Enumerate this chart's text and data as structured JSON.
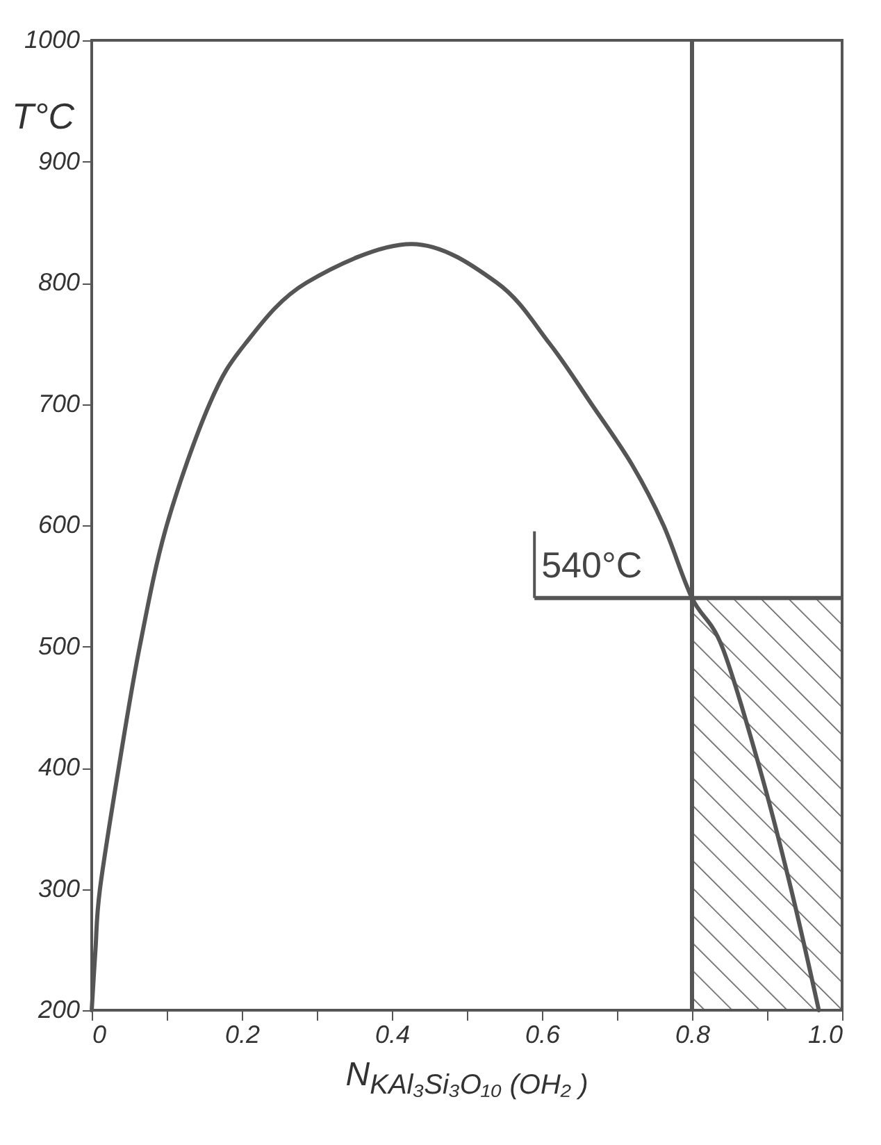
{
  "chart_data": {
    "type": "line",
    "xlabel": "N$_{KAl₃Si₃O₁₀ (OH₂ )}$",
    "ylabel": "T°C",
    "x": [
      0,
      0.005,
      0.011,
      0.036,
      0.064,
      0.1,
      0.157,
      0.205,
      0.286,
      0.426,
      0.54,
      0.61,
      0.666,
      0.72,
      0.762,
      0.8,
      0.84,
      0.89,
      0.932,
      0.969
    ],
    "series": [
      {
        "color": "#555555",
        "values": [
          200,
          250,
          300,
          400,
          500,
          600,
          700,
          750,
          800,
          832,
          800,
          750,
          700,
          650,
          600,
          540,
          500,
          400,
          300,
          200
        ]
      }
    ],
    "xlim": [
      0,
      1
    ],
    "ylim": [
      200,
      1000
    ],
    "xticks": [
      0,
      {
        "value": 0.1,
        "label": null
      },
      0.2,
      {
        "value": 0.3,
        "label": null
      },
      0.4,
      {
        "value": 0.5,
        "label": null
      },
      0.6,
      {
        "value": 0.7,
        "label": null
      },
      0.8,
      {
        "value": 0.9,
        "label": null
      },
      {
        "value": 1,
        "label": "1.0"
      }
    ],
    "yticks": [
      200,
      300,
      400,
      500,
      600,
      700,
      800,
      900,
      1000
    ],
    "ref_lines": [
      {
        "axis": "x",
        "value": 0.8,
        "color": "#555555"
      },
      {
        "axis": "y",
        "value": 540,
        "color": "#555555"
      }
    ],
    "bands": [
      {
        "axis": "x",
        "from": 0.8,
        "to": 1
      }
    ],
    "annotations": [
      {
        "text": "540°C",
        "x": 0.59,
        "y": 540
      }
    ],
    "grid": false,
    "marker": "none",
    "line_style": "solid"
  }
}
